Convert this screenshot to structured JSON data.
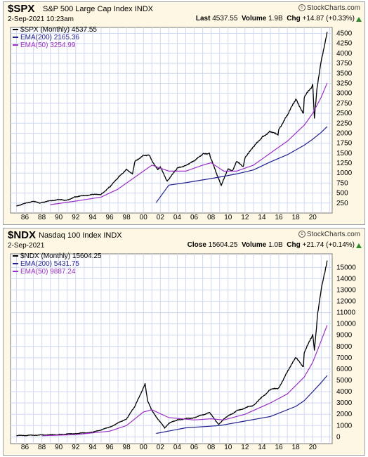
{
  "panels": [
    {
      "symbol": "$SPX",
      "name": "S&P 500 Large Cap Index",
      "exchange": "INDX",
      "brand": "StockCharts.com",
      "date": "2-Sep-2021 10:23am",
      "quote_label": "Last",
      "quote_value": "4537.55",
      "volume_label": "Volume",
      "volume_value": "1.9B",
      "chg_label": "Chg",
      "chg_value": "+14.87 (+0.33%)",
      "legend": [
        {
          "text": "$SPX (Monthly) 4537.55",
          "color": "#000000"
        },
        {
          "text": "EMA(200) 2165.36",
          "color": "#1f1f8f"
        },
        {
          "text": "EMA(50) 3254.99",
          "color": "#9b30c8"
        }
      ]
    },
    {
      "symbol": "$NDX",
      "name": "Nasdaq 100 Index",
      "exchange": "INDX",
      "brand": "StockCharts.com",
      "date": "2-Sep-2021",
      "quote_label": "Close",
      "quote_value": "15604.25",
      "volume_label": "Volume",
      "volume_value": "1.0B",
      "chg_label": "Chg",
      "chg_value": "+21.74 (+0.14%)",
      "legend": [
        {
          "text": "$NDX (Monthly) 15604.25",
          "color": "#000000"
        },
        {
          "text": "EMA(200) 5431.75",
          "color": "#1f1f8f"
        },
        {
          "text": "EMA(50) 9887.24",
          "color": "#9b30c8"
        }
      ]
    }
  ],
  "chart_data": [
    {
      "type": "line",
      "x_tick_labels": [
        "86",
        "88",
        "90",
        "92",
        "94",
        "96",
        "98",
        "00",
        "02",
        "04",
        "06",
        "08",
        "10",
        "12",
        "14",
        "16",
        "18",
        "20"
      ],
      "ylim": [
        0,
        4650
      ],
      "y_ticks": [
        250,
        500,
        750,
        1000,
        1250,
        1500,
        1750,
        2000,
        2250,
        2500,
        2750,
        3000,
        3250,
        3500,
        3750,
        4000,
        4250,
        4500
      ],
      "grid": true,
      "series": [
        {
          "name": "$SPX (Monthly)",
          "color": "#000000",
          "x": [
            1985,
            1987,
            1987.8,
            1988,
            1990,
            1990.8,
            1992,
            1994,
            1995,
            1996,
            1997,
            1998,
            1998.7,
            1999,
            2000,
            2000.7,
            2001,
            2001.7,
            2002,
            2002.8,
            2003,
            2004,
            2005,
            2006,
            2007,
            2007.8,
            2008,
            2008.8,
            2009.2,
            2010,
            2010.5,
            2011,
            2011.8,
            2012,
            2013,
            2014,
            2015,
            2015.9,
            2016,
            2017,
            2018,
            2018.9,
            2019,
            2020,
            2020.2,
            2020.5,
            2021,
            2021.7
          ],
          "y": [
            180,
            300,
            240,
            270,
            340,
            310,
            410,
            460,
            470,
            650,
            880,
            1100,
            980,
            1290,
            1450,
            1450,
            1300,
            1100,
            1150,
            800,
            850,
            1120,
            1200,
            1300,
            1480,
            1500,
            1350,
            900,
            700,
            1100,
            1050,
            1300,
            1150,
            1400,
            1650,
            1900,
            2050,
            1950,
            2100,
            2450,
            2850,
            2500,
            2900,
            3200,
            2400,
            3100,
            3800,
            4537
          ]
        },
        {
          "name": "EMA(200)",
          "color": "#1f1f8f",
          "x": [
            2001.5,
            2003,
            2005,
            2007,
            2009,
            2011,
            2013,
            2015,
            2017,
            2019,
            2020,
            2021,
            2021.7
          ],
          "y": [
            260,
            700,
            760,
            830,
            900,
            980,
            1080,
            1280,
            1460,
            1700,
            1850,
            2020,
            2165
          ]
        },
        {
          "name": "EMA(50)",
          "color": "#9b30c8",
          "x": [
            1989,
            1992,
            1995,
            1997,
            1999,
            2001,
            2003,
            2005,
            2007,
            2008,
            2009.5,
            2011,
            2013,
            2015,
            2017,
            2019,
            2020,
            2021,
            2021.7
          ],
          "y": [
            210,
            300,
            400,
            600,
            900,
            1200,
            1050,
            1050,
            1200,
            1260,
            1050,
            1050,
            1200,
            1500,
            1800,
            2200,
            2500,
            2900,
            3255
          ]
        }
      ]
    },
    {
      "type": "line",
      "x_tick_labels": [
        "86",
        "88",
        "90",
        "92",
        "94",
        "96",
        "98",
        "00",
        "02",
        "04",
        "06",
        "08",
        "10",
        "12",
        "14",
        "16",
        "18",
        "20"
      ],
      "ylim": [
        -600,
        16200
      ],
      "y_ticks": [
        0,
        1000,
        2000,
        3000,
        4000,
        5000,
        6000,
        7000,
        8000,
        9000,
        10000,
        11000,
        12000,
        13000,
        14000,
        15000
      ],
      "grid": true,
      "series": [
        {
          "name": "$NDX (Monthly)",
          "color": "#000000",
          "x": [
            1985,
            1990,
            1992,
            1994,
            1996,
            1998,
            1999,
            2000.2,
            2000.5,
            2001,
            2002.5,
            2003,
            2004,
            2006,
            2007.8,
            2008.9,
            2009.5,
            2011,
            2013,
            2015,
            2016,
            2017,
            2018,
            2018.9,
            2019,
            2020,
            2020.2,
            2020.6,
            2021,
            2021.7
          ],
          "y": [
            110,
            200,
            300,
            400,
            850,
            1600,
            2700,
            4700,
            3200,
            2300,
            800,
            1200,
            1500,
            1700,
            2150,
            1100,
            1600,
            2300,
            2800,
            4200,
            4300,
            5800,
            7000,
            6200,
            7500,
            9000,
            7700,
            11000,
            13000,
            15604
          ]
        },
        {
          "name": "EMA(200)",
          "color": "#1f1f8f",
          "x": [
            2001.5,
            2005,
            2009,
            2012,
            2015,
            2018,
            2019,
            2020,
            2021,
            2021.7
          ],
          "y": [
            300,
            800,
            1000,
            1400,
            1800,
            2700,
            3200,
            4000,
            4800,
            5432
          ]
        },
        {
          "name": "EMA(50)",
          "color": "#9b30c8",
          "x": [
            1988,
            1992,
            1996,
            1998,
            2000,
            2001,
            2003,
            2006,
            2008,
            2009.5,
            2012,
            2015,
            2017,
            2019,
            2020,
            2021,
            2021.7
          ],
          "y": [
            100,
            200,
            500,
            1000,
            2200,
            2400,
            1700,
            1500,
            1600,
            1500,
            2000,
            3000,
            3800,
            5300,
            6600,
            8500,
            9887
          ]
        }
      ]
    }
  ]
}
